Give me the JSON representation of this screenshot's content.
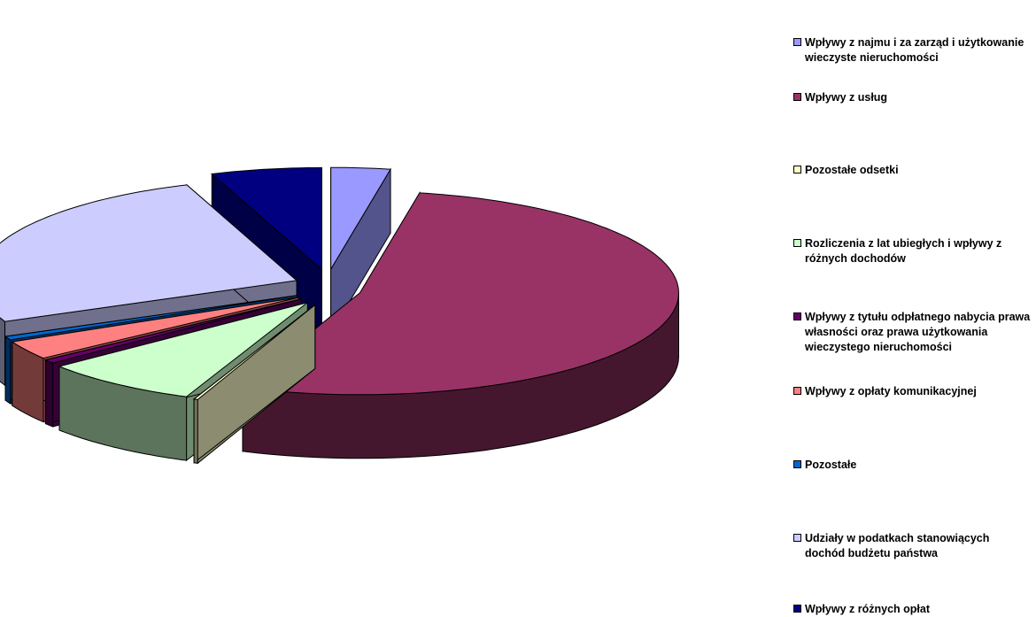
{
  "chart_data": {
    "type": "pie",
    "three_d": true,
    "exploded": true,
    "slices": [
      {
        "label": "Wpływy  z najmu i za zarząd i użytkowanie wieczyste nieruchomości",
        "value": 3.0,
        "color": "#9999ff"
      },
      {
        "label": "Wpływy z usług",
        "value": 53.0,
        "color": "#993366"
      },
      {
        "label": "Pozostałe odsetki",
        "value": 0.2,
        "color": "#ffffcc"
      },
      {
        "label": "Rozliczenia z lat ubiegłych i wpływy z różnych dochodów",
        "value": 8.0,
        "color": "#ccffcc"
      },
      {
        "label": "Wpływy z tytułu odpłatnego nabycia prawa własności oraz prawa użytkowania wieczystego nieruchomości",
        "value": 0.6,
        "color": "#660066"
      },
      {
        "label": "Wpływy z opłaty komunikacyjnej",
        "value": 3.0,
        "color": "#ff8080"
      },
      {
        "label": "Pozostałe",
        "value": 0.6,
        "color": "#0066cc"
      },
      {
        "label": "Udziały w podatkach stanowiących dochód budżetu państwa",
        "value": 26.0,
        "color": "#ccccff"
      },
      {
        "label": "Wpływy z różnych opłat",
        "value": 5.6,
        "color": "#000080"
      }
    ],
    "legend_position": "right"
  }
}
